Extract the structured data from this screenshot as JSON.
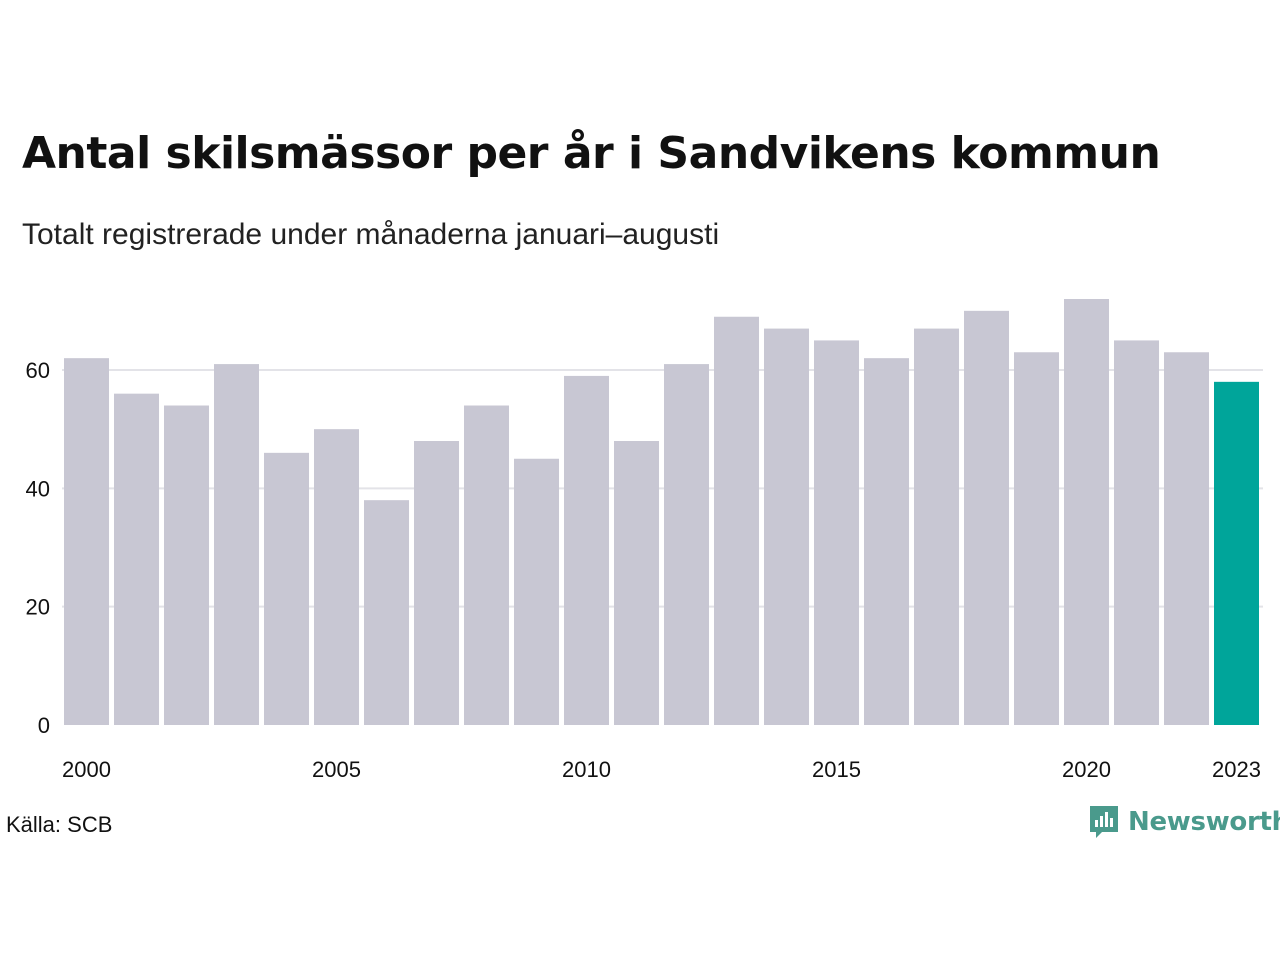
{
  "title": "Antal skilsmässor per år i Sandvikens kommun",
  "subtitle": "Totalt registrerade under månaderna januari–augusti",
  "source": "Källa: SCB",
  "brand": {
    "name": "Newsworthy",
    "icon": "newsworthy-logo-icon",
    "color": "#4a9a8c"
  },
  "colors": {
    "bar": "#c8c7d3",
    "highlight": "#00a59a",
    "grid": "#e3e3e8"
  },
  "chart_data": {
    "type": "bar",
    "categories": [
      "2000",
      "2001",
      "2002",
      "2003",
      "2004",
      "2005",
      "2006",
      "2007",
      "2008",
      "2009",
      "2010",
      "2011",
      "2012",
      "2013",
      "2014",
      "2015",
      "2016",
      "2017",
      "2018",
      "2019",
      "2020",
      "2021",
      "2022",
      "2023"
    ],
    "values": [
      62,
      56,
      54,
      61,
      46,
      50,
      38,
      48,
      54,
      45,
      59,
      48,
      61,
      69,
      67,
      65,
      62,
      67,
      70,
      63,
      72,
      65,
      63,
      58
    ],
    "highlight_index": 23,
    "x_tick_labels": [
      "2000",
      "2005",
      "2010",
      "2015",
      "2020",
      "2023"
    ],
    "y_ticks": [
      0,
      20,
      40,
      60
    ],
    "ylim": [
      0,
      72
    ],
    "grid": true,
    "legend": false
  }
}
